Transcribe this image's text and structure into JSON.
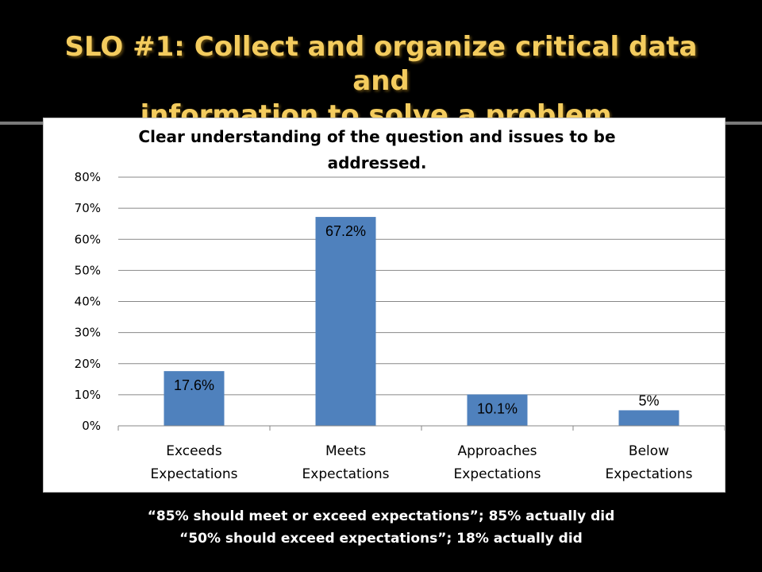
{
  "slide": {
    "title_line1": "SLO #1: Collect and organize critical data and",
    "title_line2": "information to solve a problem.",
    "footnote_line1": "“85% should meet or exceed expectations”; 85% actually did",
    "footnote_line2": "“50% should exceed expectations”; 18% actually did"
  },
  "chart_data": {
    "type": "bar",
    "title_lines": [
      "Clear understanding of the question and issues to be",
      "addressed."
    ],
    "categories": [
      [
        "Exceeds",
        "Expectations"
      ],
      [
        "Meets",
        "Expectations"
      ],
      [
        "Approaches",
        "Expectations"
      ],
      [
        "Below",
        "Expectations"
      ]
    ],
    "values": [
      17.6,
      67.2,
      10.1,
      5
    ],
    "data_labels": [
      "17.6%",
      "67.2%",
      "10.1%",
      "5%"
    ],
    "y_ticks": [
      "0%",
      "10%",
      "20%",
      "30%",
      "40%",
      "50%",
      "60%",
      "70%",
      "80%"
    ],
    "ylim": [
      0,
      80
    ],
    "grid": true,
    "legend": "none",
    "colors": {
      "bar": "#4f81bd",
      "grid": "#878787",
      "title_text": "#f4cc5e"
    }
  }
}
